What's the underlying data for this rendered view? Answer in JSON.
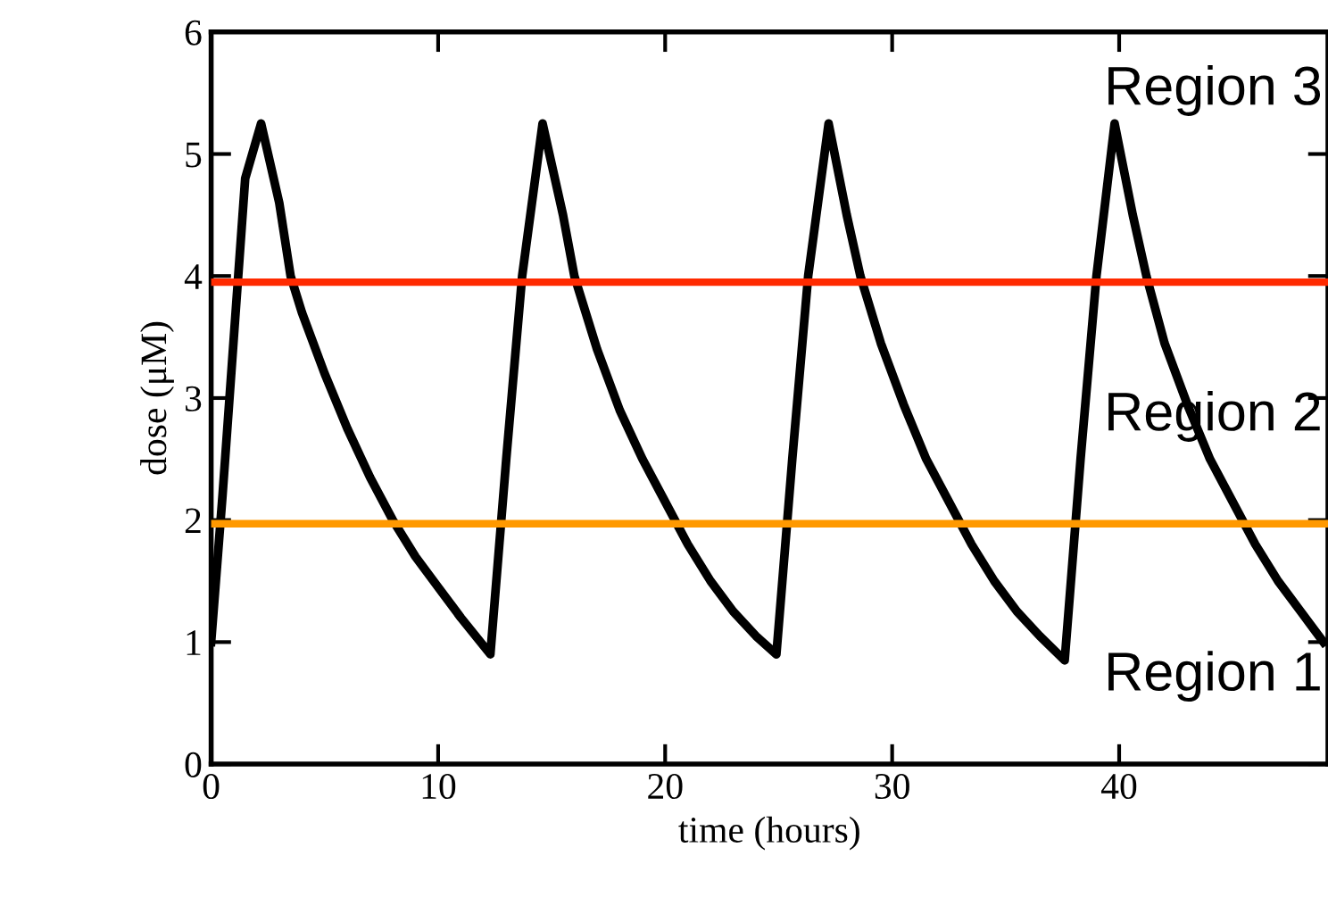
{
  "chart_data": {
    "type": "line",
    "xlabel": "time (hours)",
    "ylabel": "dose (μM)",
    "xlim": [
      0,
      49.2
    ],
    "ylim": [
      0,
      6
    ],
    "xticks": [
      0,
      10,
      20,
      30,
      40
    ],
    "yticks": [
      0,
      1,
      2,
      3,
      4,
      5,
      6
    ],
    "grid": false,
    "marker": "none",
    "line_style": "solid",
    "series": [
      {
        "color": "#000000",
        "x": [
          0,
          0.5,
          1,
          1.5,
          2.2,
          3,
          3.5,
          4,
          5,
          6,
          7,
          8,
          9,
          10,
          11,
          12.3,
          13,
          13.7,
          14.6,
          15.5,
          16,
          17,
          18,
          19,
          20,
          21,
          22,
          23,
          24,
          24.9,
          25.6,
          26.3,
          27.2,
          28,
          28.6,
          29.5,
          30.5,
          31.5,
          32.5,
          33.5,
          34.5,
          35.5,
          36.5,
          37.6,
          38.3,
          39,
          39.8,
          40.6,
          41.2,
          42,
          43,
          44,
          45,
          46,
          47,
          48,
          49
        ],
        "values": [
          1.0,
          2.2,
          3.5,
          4.8,
          5.25,
          4.6,
          4.0,
          3.7,
          3.2,
          2.75,
          2.35,
          2.0,
          1.7,
          1.45,
          1.2,
          0.9,
          2.5,
          4.0,
          5.25,
          4.5,
          4.0,
          3.4,
          2.9,
          2.5,
          2.15,
          1.8,
          1.5,
          1.25,
          1.05,
          0.9,
          2.5,
          4.0,
          5.25,
          4.5,
          4.0,
          3.45,
          2.95,
          2.5,
          2.15,
          1.8,
          1.5,
          1.25,
          1.05,
          0.85,
          2.5,
          4.0,
          5.25,
          4.5,
          4.0,
          3.45,
          2.95,
          2.5,
          2.15,
          1.8,
          1.5,
          1.25,
          1.0
        ]
      }
    ],
    "ref_lines": [
      {
        "axis": "y",
        "value": 3.95,
        "color": "#ff2a00",
        "line_style": "solid"
      },
      {
        "axis": "y",
        "value": 1.97,
        "color": "#ff9900",
        "line_style": "solid"
      }
    ],
    "annotations": [
      "Region 3",
      "Region 2",
      "Region 1"
    ]
  }
}
